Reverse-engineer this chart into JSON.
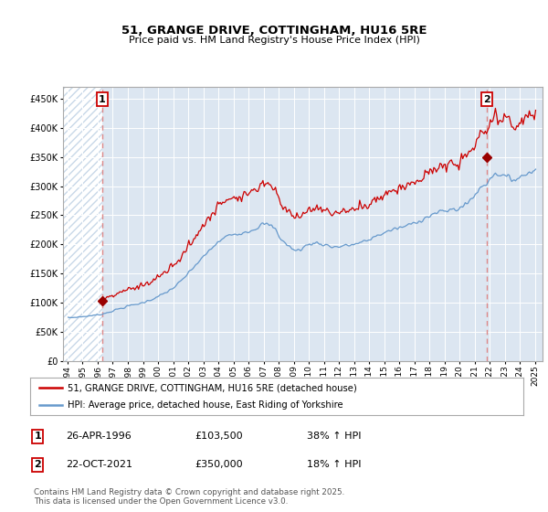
{
  "title": "51, GRANGE DRIVE, COTTINGHAM, HU16 5RE",
  "subtitle": "Price paid vs. HM Land Registry's House Price Index (HPI)",
  "background_color": "#ffffff",
  "plot_bg_color": "#dce6f1",
  "grid_color": "#ffffff",
  "red_line_color": "#cc0000",
  "blue_line_color": "#6699cc",
  "dashed_line_color": "#dd8888",
  "marker_color": "#990000",
  "annotation_border_color": "#cc0000",
  "legend_label_red": "51, GRANGE DRIVE, COTTINGHAM, HU16 5RE (detached house)",
  "legend_label_blue": "HPI: Average price, detached house, East Riding of Yorkshire",
  "note_text": "Contains HM Land Registry data © Crown copyright and database right 2025.\nThis data is licensed under the Open Government Licence v3.0.",
  "sale1_label": "1",
  "sale1_date": "26-APR-1996",
  "sale1_price": "£103,500",
  "sale1_hpi": "38% ↑ HPI",
  "sale2_label": "2",
  "sale2_date": "22-OCT-2021",
  "sale2_price": "£350,000",
  "sale2_hpi": "18% ↑ HPI",
  "ylim": [
    0,
    470000
  ],
  "yticks": [
    0,
    50000,
    100000,
    150000,
    200000,
    250000,
    300000,
    350000,
    400000,
    450000
  ],
  "ytick_labels": [
    "£0",
    "£50K",
    "£100K",
    "£150K",
    "£200K",
    "£250K",
    "£300K",
    "£350K",
    "£400K",
    "£450K"
  ],
  "sale1_x": 1996.29,
  "sale1_y": 103500,
  "sale2_x": 2021.79,
  "sale2_y": 350000,
  "xlim_left": 1993.7,
  "xlim_right": 2025.5,
  "hatch_end_x": 1996.29,
  "xtick_years": [
    1994,
    1995,
    1996,
    1997,
    1998,
    1999,
    2000,
    2001,
    2002,
    2003,
    2004,
    2005,
    2006,
    2007,
    2008,
    2009,
    2010,
    2011,
    2012,
    2013,
    2014,
    2015,
    2016,
    2017,
    2018,
    2019,
    2020,
    2021,
    2022,
    2023,
    2024,
    2025
  ]
}
